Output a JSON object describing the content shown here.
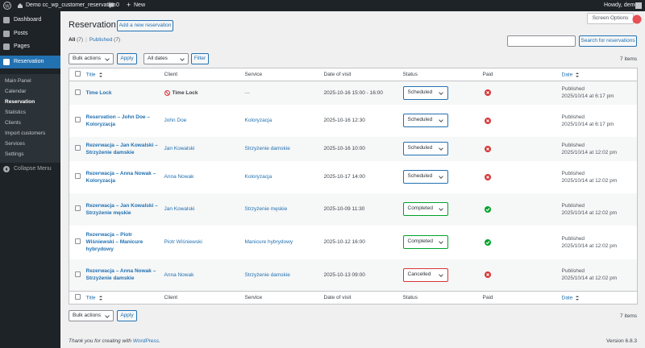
{
  "admin_bar": {
    "site": "Demo cc_wp_customer_reservation",
    "comments": "0",
    "new": "New",
    "greeting": "Howdy, demo"
  },
  "menu": {
    "items": [
      "Dashboard",
      "Posts",
      "Pages",
      "Reservation"
    ],
    "active": 3,
    "submenu": [
      "Main Panel",
      "Calendar",
      "Reservation",
      "Statistics",
      "Clients",
      "Import customers",
      "Services",
      "Settings"
    ],
    "submenu_current": 2,
    "collapse": "Collapse Menu"
  },
  "header": {
    "screen_options": "Screen Options",
    "title": "Reservation",
    "add_new": "Add a new reservation"
  },
  "views": [
    {
      "label": "All",
      "count": "(7)"
    },
    {
      "label": "Published",
      "count": "(7)"
    }
  ],
  "search": {
    "button": "Search for reservations"
  },
  "tablenav_top": {
    "bulk": "Bulk actions",
    "apply": "Apply",
    "dates": "All dates",
    "filter": "Filter",
    "count": "7 items"
  },
  "tablenav_bottom": {
    "bulk": "Bulk actions",
    "apply": "Apply",
    "count": "7 items"
  },
  "table": {
    "columns": [
      "Title",
      "Client",
      "Service",
      "Date of visit",
      "Status",
      "Paid",
      "Date"
    ],
    "rows": [
      {
        "title": "Time Lock",
        "client": "Time Lock",
        "client_blocked": true,
        "service": "—",
        "visit": "2025-10-16 15:00 - 16:00",
        "status": "Scheduled",
        "paid": false,
        "state": "Published",
        "date": "2025/10/14 at 6:17 pm"
      },
      {
        "title": "Reservation – John Doe – Koloryzacja",
        "client": "John Doe",
        "service": "Koloryzacja",
        "visit": "2025-10-16 12:30",
        "status": "Scheduled",
        "paid": false,
        "state": "Published",
        "date": "2025/10/14 at 6:17 pm"
      },
      {
        "title": "Rezerwacja – Jan Kowalski – Strzyżenie damskie",
        "client": "Jan Kowalski",
        "service": "Strzyżenie damskie",
        "visit": "2025-10-16 10:00",
        "status": "Scheduled",
        "paid": false,
        "state": "Published",
        "date": "2025/10/14 at 12:02 pm"
      },
      {
        "title": "Rezerwacja – Anna Nowak – Koloryzacja",
        "client": "Anna Nowak",
        "service": "Koloryzacja",
        "visit": "2025-10-17 14:00",
        "status": "Scheduled",
        "paid": false,
        "state": "Published",
        "date": "2025/10/14 at 12:02 pm"
      },
      {
        "title": "Rezerwacja – Jan Kowalski – Strzyżenie męskie",
        "client": "Jan Kowalski",
        "service": "Strzyżenie męskie",
        "visit": "2025-10-09 11:30",
        "status": "Completed",
        "paid": true,
        "state": "Published",
        "date": "2025/10/14 at 12:02 pm"
      },
      {
        "title": "Rezerwacja – Piotr Wiśniewski – Manicure hybrydowy",
        "client": "Piotr Wiśniewski",
        "service": "Manicure hybrydowy",
        "visit": "2025-10-12 16:00",
        "status": "Completed",
        "paid": true,
        "state": "Published",
        "date": "2025/10/14 at 12:02 pm"
      },
      {
        "title": "Rezerwacja – Anna Nowak – Strzyżenie damskie",
        "client": "Anna Nowak",
        "service": "Strzyżenie damskie",
        "visit": "2025-10-13 09:00",
        "status": "Cancelled",
        "paid": false,
        "state": "Published",
        "date": "2025/10/14 at 12:02 pm"
      }
    ]
  },
  "footer": {
    "thanks": "Thank you for creating with",
    "link": "WordPress",
    "end": ".",
    "version": "Version 6.8.3"
  }
}
